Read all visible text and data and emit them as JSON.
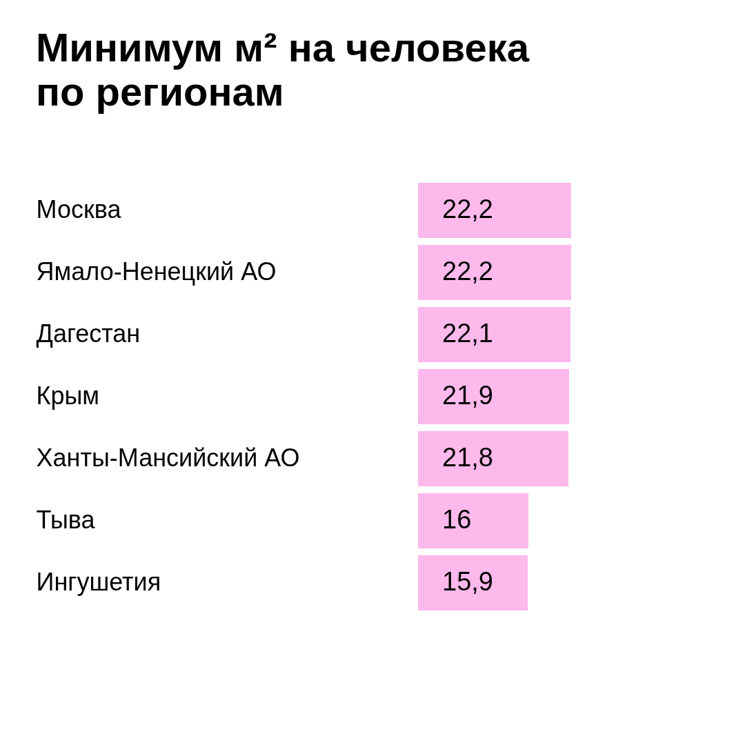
{
  "chart_data": {
    "type": "bar",
    "orientation": "horizontal",
    "title": "Минимум м² на человека по регионам",
    "categories": [
      "Москва",
      "Ямало-Ненецкий АО",
      "Дагестан",
      "Крым",
      "Ханты-Мансийский АО",
      "Тыва",
      "Ингушетия"
    ],
    "values": [
      22.2,
      22.2,
      22.1,
      21.9,
      21.8,
      16,
      15.9
    ],
    "value_labels": [
      "22,2",
      "22,2",
      "22,1",
      "21,9",
      "21,8",
      "16",
      "15,9"
    ],
    "color": "#fdb9ec",
    "grid": false
  }
}
